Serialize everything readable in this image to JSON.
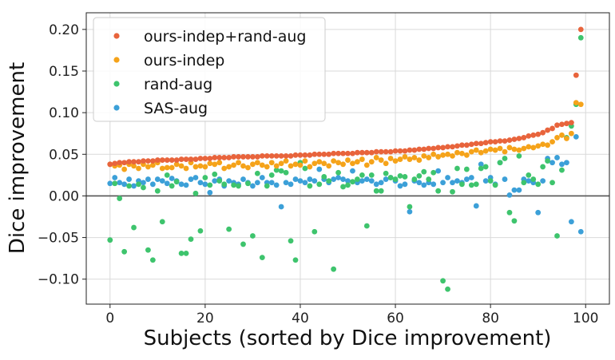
{
  "chart_data": {
    "type": "scatter",
    "title": "",
    "xlabel": "Subjects (sorted by Dice improvement)",
    "ylabel": "Dice improvement",
    "xlim": [
      -5,
      105
    ],
    "ylim": [
      -0.13,
      0.22
    ],
    "xticks": [
      0,
      20,
      40,
      60,
      80,
      100
    ],
    "xtick_labels": [
      "0",
      "20",
      "40",
      "60",
      "80",
      "100"
    ],
    "yticks": [
      -0.1,
      -0.05,
      0.0,
      0.05,
      0.1,
      0.15,
      0.2
    ],
    "ytick_labels": [
      "−0.10",
      "−0.05",
      "0.00",
      "0.05",
      "0.10",
      "0.15",
      "0.20"
    ],
    "grid": true,
    "legend_position": "top-left",
    "reference_line_y": 0.0,
    "series": [
      {
        "name": "ours-indep+rand-aug",
        "color": "#e8643c",
        "x": [
          0,
          1,
          2,
          3,
          4,
          5,
          6,
          7,
          8,
          9,
          10,
          11,
          12,
          13,
          14,
          15,
          16,
          17,
          18,
          19,
          20,
          21,
          22,
          23,
          24,
          25,
          26,
          27,
          28,
          29,
          30,
          31,
          32,
          33,
          34,
          35,
          36,
          37,
          38,
          39,
          40,
          41,
          42,
          43,
          44,
          45,
          46,
          47,
          48,
          49,
          50,
          51,
          52,
          53,
          54,
          55,
          56,
          57,
          58,
          59,
          60,
          61,
          62,
          63,
          64,
          65,
          66,
          67,
          68,
          69,
          70,
          71,
          72,
          73,
          74,
          75,
          76,
          77,
          78,
          79,
          80,
          81,
          82,
          83,
          84,
          85,
          86,
          87,
          88,
          89,
          90,
          91,
          92,
          93,
          94,
          95,
          96,
          97,
          98,
          99
        ],
        "values": [
          0.038,
          0.039,
          0.04,
          0.04,
          0.041,
          0.041,
          0.041,
          0.042,
          0.042,
          0.042,
          0.043,
          0.043,
          0.043,
          0.043,
          0.043,
          0.044,
          0.044,
          0.044,
          0.044,
          0.045,
          0.045,
          0.045,
          0.046,
          0.046,
          0.046,
          0.046,
          0.047,
          0.047,
          0.047,
          0.047,
          0.047,
          0.047,
          0.048,
          0.048,
          0.048,
          0.048,
          0.048,
          0.048,
          0.048,
          0.049,
          0.049,
          0.049,
          0.049,
          0.05,
          0.05,
          0.05,
          0.05,
          0.051,
          0.051,
          0.051,
          0.051,
          0.051,
          0.052,
          0.052,
          0.052,
          0.052,
          0.053,
          0.053,
          0.053,
          0.053,
          0.054,
          0.054,
          0.054,
          0.055,
          0.055,
          0.056,
          0.056,
          0.057,
          0.057,
          0.058,
          0.058,
          0.059,
          0.059,
          0.06,
          0.061,
          0.061,
          0.062,
          0.063,
          0.063,
          0.064,
          0.065,
          0.065,
          0.066,
          0.066,
          0.067,
          0.068,
          0.069,
          0.07,
          0.072,
          0.073,
          0.074,
          0.076,
          0.079,
          0.081,
          0.085,
          0.086,
          0.087,
          0.088,
          0.145,
          0.2
        ]
      },
      {
        "name": "ours-indep",
        "color": "#f5a31a",
        "x": [
          0,
          1,
          2,
          3,
          4,
          5,
          6,
          7,
          8,
          9,
          10,
          11,
          12,
          13,
          14,
          15,
          16,
          17,
          18,
          19,
          20,
          21,
          22,
          23,
          24,
          25,
          26,
          27,
          28,
          29,
          30,
          31,
          32,
          33,
          34,
          35,
          36,
          37,
          38,
          39,
          40,
          41,
          42,
          43,
          44,
          45,
          46,
          47,
          48,
          49,
          50,
          51,
          52,
          53,
          54,
          55,
          56,
          57,
          58,
          59,
          60,
          61,
          62,
          63,
          64,
          65,
          66,
          67,
          68,
          69,
          70,
          71,
          72,
          73,
          74,
          75,
          76,
          77,
          78,
          79,
          80,
          81,
          82,
          83,
          84,
          85,
          86,
          87,
          88,
          89,
          90,
          91,
          92,
          93,
          94,
          95,
          96,
          97,
          98,
          99
        ],
        "values": [
          0.038,
          0.036,
          0.037,
          0.032,
          0.038,
          0.036,
          0.033,
          0.038,
          0.035,
          0.037,
          0.04,
          0.033,
          0.034,
          0.034,
          0.038,
          0.036,
          0.033,
          0.04,
          0.035,
          0.036,
          0.035,
          0.039,
          0.038,
          0.04,
          0.033,
          0.035,
          0.037,
          0.04,
          0.036,
          0.034,
          0.038,
          0.04,
          0.037,
          0.035,
          0.04,
          0.036,
          0.039,
          0.042,
          0.036,
          0.038,
          0.037,
          0.042,
          0.035,
          0.039,
          0.041,
          0.039,
          0.036,
          0.042,
          0.04,
          0.038,
          0.043,
          0.039,
          0.041,
          0.044,
          0.037,
          0.041,
          0.046,
          0.043,
          0.039,
          0.045,
          0.042,
          0.044,
          0.047,
          0.044,
          0.046,
          0.043,
          0.048,
          0.046,
          0.05,
          0.047,
          0.049,
          0.05,
          0.048,
          0.052,
          0.051,
          0.049,
          0.053,
          0.055,
          0.052,
          0.054,
          0.056,
          0.055,
          0.057,
          0.053,
          0.058,
          0.056,
          0.055,
          0.057,
          0.059,
          0.058,
          0.06,
          0.062,
          0.061,
          0.065,
          0.07,
          0.073,
          0.069,
          0.075,
          0.112,
          0.11
        ]
      },
      {
        "name": "rand-aug",
        "color": "#3ec46d",
        "x": [
          0,
          1,
          2,
          3,
          4,
          5,
          6,
          7,
          8,
          9,
          10,
          11,
          12,
          13,
          14,
          15,
          16,
          17,
          18,
          19,
          20,
          21,
          22,
          23,
          24,
          25,
          26,
          27,
          28,
          29,
          30,
          31,
          32,
          33,
          34,
          35,
          36,
          37,
          38,
          39,
          40,
          41,
          42,
          43,
          44,
          45,
          46,
          47,
          48,
          49,
          50,
          51,
          52,
          53,
          54,
          55,
          56,
          57,
          58,
          59,
          60,
          61,
          62,
          63,
          64,
          65,
          66,
          67,
          68,
          69,
          70,
          71,
          72,
          73,
          74,
          75,
          76,
          77,
          78,
          79,
          80,
          81,
          82,
          83,
          84,
          85,
          86,
          87,
          88,
          89,
          90,
          91,
          92,
          93,
          94,
          95,
          96,
          97,
          98,
          99
        ],
        "values": [
          -0.053,
          0.015,
          -0.003,
          -0.067,
          0.012,
          -0.038,
          0.014,
          0.01,
          -0.065,
          -0.077,
          0.006,
          -0.031,
          0.025,
          0.012,
          0.017,
          -0.069,
          -0.069,
          -0.052,
          0.003,
          -0.042,
          0.022,
          0.013,
          0.026,
          0.018,
          0.014,
          -0.04,
          0.013,
          0.012,
          -0.058,
          0.015,
          -0.048,
          0.027,
          -0.074,
          0.012,
          0.025,
          0.031,
          0.03,
          0.028,
          -0.054,
          -0.077,
          0.04,
          0.033,
          0.012,
          -0.043,
          0.014,
          0.023,
          0.018,
          -0.088,
          0.028,
          0.011,
          0.013,
          0.017,
          0.02,
          0.025,
          -0.036,
          0.025,
          0.006,
          0.006,
          0.027,
          0.022,
          0.02,
          0.024,
          0.023,
          -0.013,
          0.02,
          0.024,
          0.029,
          0.02,
          0.028,
          0.006,
          -0.102,
          -0.112,
          0.005,
          0.033,
          0.014,
          0.032,
          0.013,
          0.014,
          0.033,
          0.035,
          0.018,
          0.013,
          0.04,
          0.045,
          -0.02,
          -0.03,
          0.048,
          0.016,
          0.025,
          0.02,
          0.014,
          0.035,
          0.042,
          0.016,
          -0.048,
          0.031,
          0.07,
          0.084,
          0.11,
          0.19
        ]
      },
      {
        "name": "SAS-aug",
        "color": "#3ca0d8",
        "x": [
          0,
          1,
          2,
          3,
          4,
          5,
          6,
          7,
          8,
          9,
          10,
          11,
          12,
          13,
          14,
          15,
          16,
          17,
          18,
          19,
          20,
          21,
          22,
          23,
          24,
          25,
          26,
          27,
          28,
          29,
          30,
          31,
          32,
          33,
          34,
          35,
          36,
          37,
          38,
          39,
          40,
          41,
          42,
          43,
          44,
          45,
          46,
          47,
          48,
          49,
          50,
          51,
          52,
          53,
          54,
          55,
          56,
          57,
          58,
          59,
          60,
          61,
          62,
          63,
          64,
          65,
          66,
          67,
          68,
          69,
          70,
          71,
          72,
          73,
          74,
          75,
          76,
          77,
          78,
          79,
          80,
          81,
          82,
          83,
          84,
          85,
          86,
          87,
          88,
          89,
          90,
          91,
          92,
          93,
          94,
          95,
          96,
          97,
          98,
          99
        ],
        "values": [
          0.015,
          0.022,
          0.016,
          0.014,
          0.02,
          0.012,
          0.018,
          0.016,
          0.02,
          0.014,
          0.02,
          0.018,
          0.015,
          0.021,
          0.018,
          0.014,
          0.013,
          0.02,
          0.022,
          0.016,
          0.014,
          0.004,
          0.018,
          0.02,
          0.012,
          0.018,
          0.016,
          0.014,
          0.02,
          0.016,
          0.012,
          0.016,
          0.022,
          0.016,
          0.016,
          0.013,
          -0.013,
          0.016,
          0.014,
          0.02,
          0.018,
          0.016,
          0.02,
          0.018,
          0.032,
          0.02,
          0.016,
          0.02,
          0.022,
          0.02,
          0.018,
          0.03,
          0.016,
          0.018,
          0.02,
          0.018,
          0.014,
          0.016,
          0.02,
          0.022,
          0.018,
          0.012,
          0.014,
          -0.019,
          0.018,
          0.016,
          0.013,
          0.016,
          0.014,
          0.03,
          0.016,
          0.022,
          0.016,
          0.018,
          0.016,
          0.02,
          0.022,
          -0.012,
          0.038,
          0.018,
          0.022,
          0.014,
          0.04,
          0.02,
          0.001,
          0.007,
          0.007,
          0.02,
          0.018,
          0.016,
          -0.02,
          0.018,
          0.045,
          0.04,
          0.046,
          0.038,
          0.04,
          -0.031,
          0.071,
          -0.043
        ]
      }
    ]
  }
}
